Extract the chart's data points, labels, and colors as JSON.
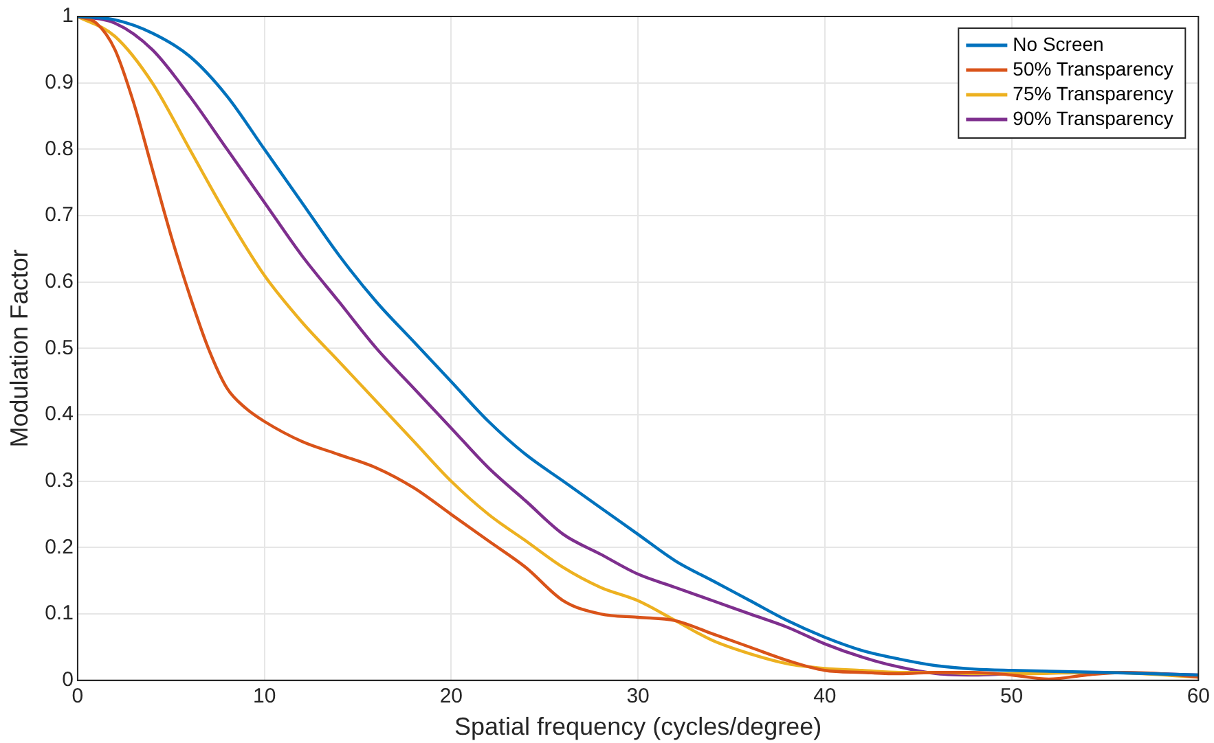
{
  "chart_data": {
    "type": "line",
    "xlabel": "Spatial frequency (cycles/degree)",
    "ylabel": "Modulation Factor",
    "xlim": [
      0,
      60
    ],
    "xticks": [
      0,
      10,
      20,
      30,
      40,
      50,
      60
    ],
    "ylim": [
      0,
      1
    ],
    "yticks": [
      0,
      0.1,
      0.2,
      0.3,
      0.4,
      0.5,
      0.6,
      0.7,
      0.8,
      0.9,
      1
    ],
    "grid": true,
    "legend": "top right",
    "marker": "none",
    "line_style": "solid",
    "series": [
      {
        "name": "No Screen",
        "color": "#0072bd",
        "x": [
          0,
          2,
          4,
          6,
          8,
          10,
          12,
          14,
          16,
          18,
          20,
          22,
          24,
          26,
          28,
          30,
          32,
          34,
          36,
          38,
          40,
          42,
          44,
          46,
          48,
          50,
          55,
          60
        ],
        "values": [
          1,
          0.995,
          0.975,
          0.94,
          0.88,
          0.8,
          0.72,
          0.64,
          0.57,
          0.51,
          0.45,
          0.39,
          0.34,
          0.3,
          0.26,
          0.22,
          0.18,
          0.15,
          0.12,
          0.09,
          0.065,
          0.045,
          0.032,
          0.022,
          0.017,
          0.015,
          0.012,
          0.008
        ]
      },
      {
        "name": "50% Transparency",
        "color": "#d95319",
        "x": [
          0,
          1,
          2,
          3,
          4,
          5,
          6,
          7,
          8,
          9,
          10,
          12,
          14,
          16,
          18,
          20,
          22,
          24,
          26,
          28,
          30,
          32,
          34,
          36,
          38,
          40,
          42,
          44,
          46,
          48,
          50,
          52,
          54,
          56,
          58,
          60
        ],
        "values": [
          1,
          0.99,
          0.95,
          0.87,
          0.77,
          0.67,
          0.58,
          0.5,
          0.44,
          0.41,
          0.39,
          0.36,
          0.34,
          0.32,
          0.29,
          0.25,
          0.21,
          0.17,
          0.12,
          0.1,
          0.095,
          0.09,
          0.07,
          0.05,
          0.03,
          0.015,
          0.012,
          0.01,
          0.012,
          0.012,
          0.008,
          0.002,
          0.008,
          0.012,
          0.01,
          0.005
        ]
      },
      {
        "name": "75% Transparency",
        "color": "#edb120",
        "x": [
          0,
          2,
          4,
          6,
          8,
          10,
          12,
          14,
          16,
          18,
          20,
          22,
          24,
          26,
          28,
          30,
          32,
          34,
          36,
          38,
          40,
          42,
          44,
          46,
          48,
          50,
          55,
          60
        ],
        "values": [
          1,
          0.97,
          0.9,
          0.8,
          0.7,
          0.61,
          0.54,
          0.48,
          0.42,
          0.36,
          0.3,
          0.25,
          0.21,
          0.17,
          0.14,
          0.12,
          0.09,
          0.06,
          0.04,
          0.025,
          0.018,
          0.015,
          0.012,
          0.012,
          0.01,
          0.01,
          0.012,
          0.005
        ]
      },
      {
        "name": "90% Transparency",
        "color": "#7e2f8e",
        "x": [
          0,
          2,
          4,
          6,
          8,
          10,
          12,
          14,
          16,
          18,
          20,
          22,
          24,
          26,
          28,
          30,
          32,
          34,
          36,
          38,
          40,
          42,
          44,
          46,
          48,
          50,
          55,
          60
        ],
        "values": [
          1,
          0.99,
          0.95,
          0.88,
          0.8,
          0.72,
          0.64,
          0.57,
          0.5,
          0.44,
          0.38,
          0.32,
          0.27,
          0.22,
          0.19,
          0.16,
          0.14,
          0.12,
          0.1,
          0.08,
          0.055,
          0.035,
          0.02,
          0.01,
          0.008,
          0.01,
          0.012,
          0.008
        ]
      }
    ]
  }
}
